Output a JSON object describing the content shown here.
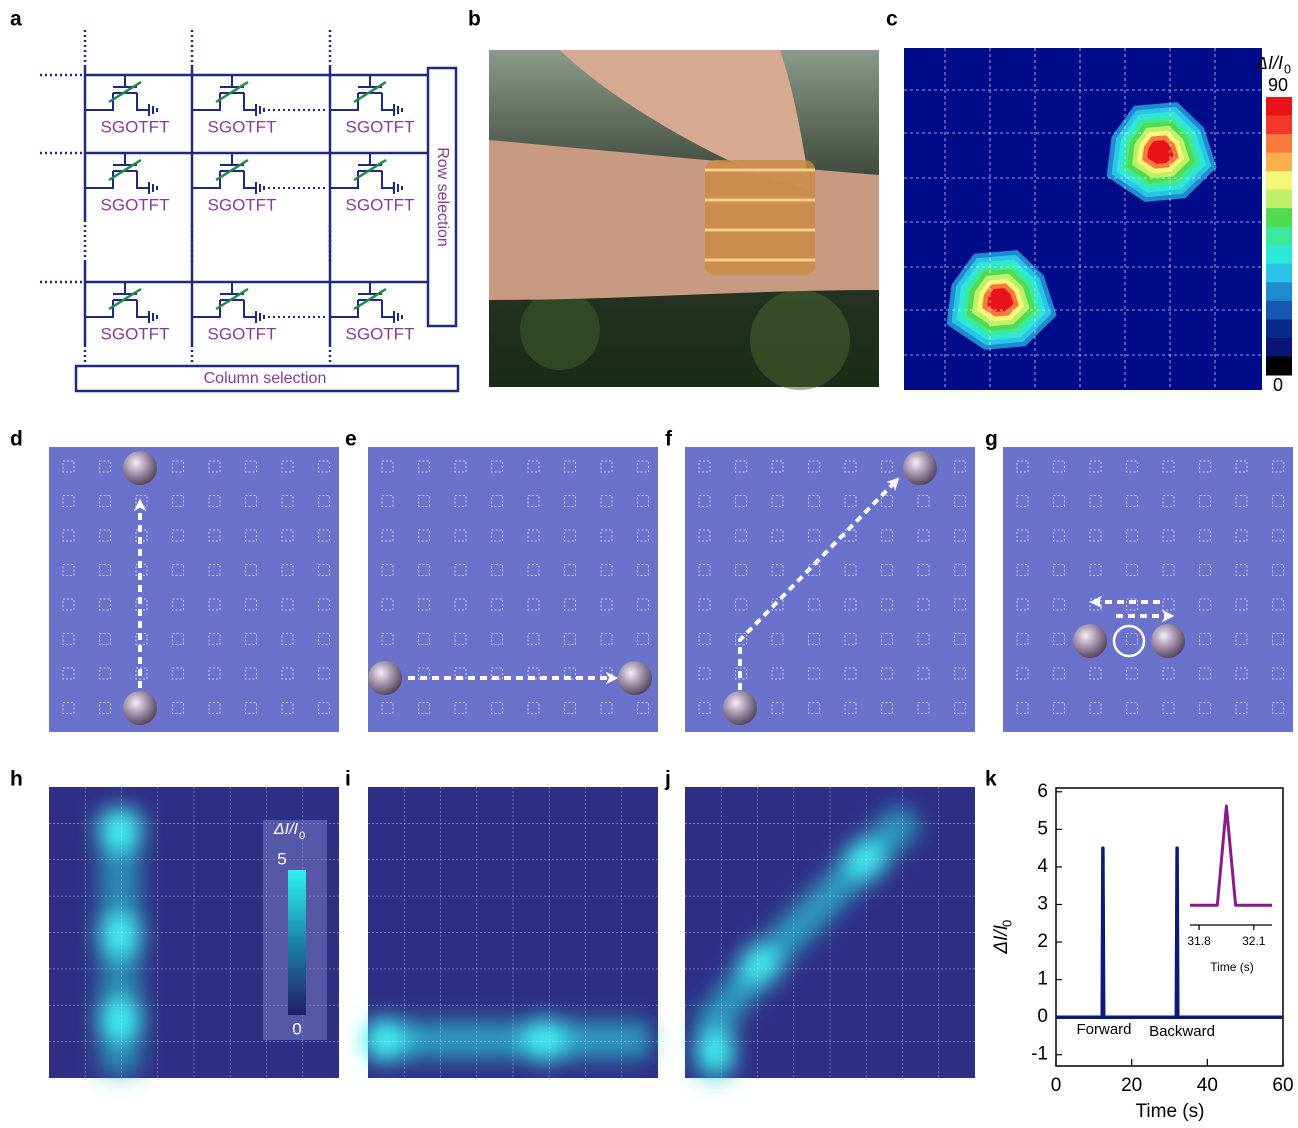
{
  "panel_labels": [
    "a",
    "b",
    "c",
    "d",
    "e",
    "f",
    "g",
    "h",
    "i",
    "j",
    "k"
  ],
  "circuit": {
    "cells": [
      "SGOTFT",
      "SGOTFT",
      "SGOTFT",
      "SGOTFT",
      "SGOTFT",
      "SGOTFT",
      "SGOTFT",
      "SGOTFT",
      "SGOTFT"
    ],
    "row_selection": "Row selection",
    "column_selection": "Column selection"
  },
  "panel_c": {
    "colorbar_label": {
      "main": "ΔI/I",
      "sub": "0"
    },
    "colorbar_max": "90",
    "colorbar_min": "0"
  },
  "panel_h": {
    "colorbar_label": {
      "main": "ΔI/I",
      "sub": "0"
    },
    "colorbar_max": "5",
    "colorbar_min": "0"
  },
  "chart_data": [
    {
      "type": "line",
      "x_label": "Time (s)",
      "y_label": {
        "main": "ΔI/I",
        "sub": "0"
      },
      "x": [
        0,
        12.2,
        12.4,
        12.6,
        31.8,
        32.0,
        32.2,
        60
      ],
      "values": [
        0,
        0,
        4.5,
        0,
        0,
        4.5,
        0,
        0
      ],
      "color": "#0d1a7a",
      "xlim": [
        0,
        60
      ],
      "xticks": [
        0,
        20,
        40,
        60
      ],
      "ylim": [
        -1.3,
        6.1
      ],
      "yticks": [
        -1,
        0,
        1,
        2,
        3,
        4,
        5,
        6
      ],
      "annotations": [
        "Forward",
        "Backward"
      ]
    },
    {
      "type": "line",
      "x_label": "Time (s)",
      "x": [
        31.75,
        31.9,
        31.95,
        32.0,
        32.2
      ],
      "values": [
        0,
        0,
        4.5,
        0,
        0
      ],
      "color": "#8a1a8a",
      "xlim": [
        31.75,
        32.2
      ],
      "xticks": [
        31.8,
        32.1
      ],
      "ylim": [
        -0.9,
        5.0
      ]
    }
  ]
}
